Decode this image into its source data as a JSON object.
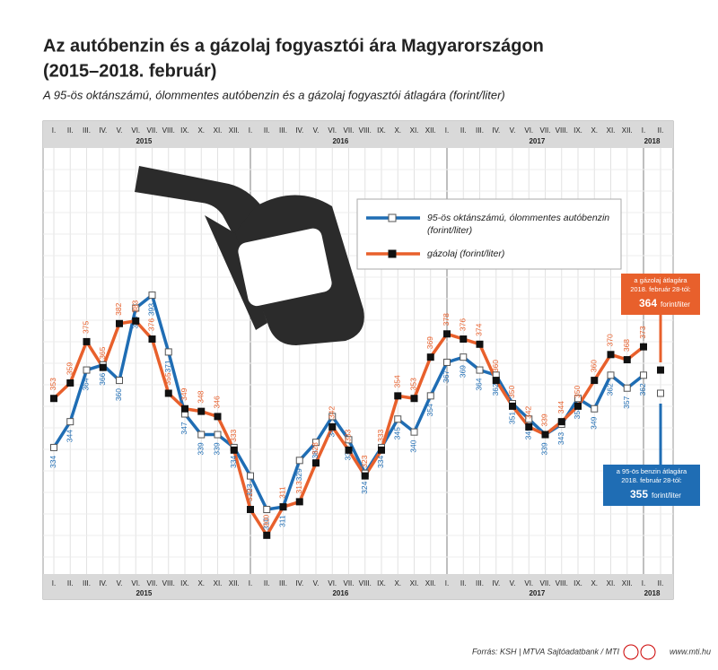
{
  "chart_data": {
    "type": "line",
    "title": [
      "Az autóbenzin és a gázolaj fogyasztói ára Magyarországon",
      "(2015–2018. február)"
    ],
    "subtitle": "A 95-ös oktánszámú, ólommentes autóbenzin és a gázolaj fogyasztói átlagára (forint/liter)",
    "categories": [
      "I.",
      "II.",
      "III.",
      "IV.",
      "V.",
      "VI.",
      "VII.",
      "VIII.",
      "IX.",
      "X.",
      "XI.",
      "XII.",
      "I.",
      "II.",
      "III.",
      "IV.",
      "V.",
      "VI.",
      "VII.",
      "VIII.",
      "IX.",
      "X.",
      "XI.",
      "XII.",
      "I.",
      "II.",
      "III.",
      "IV.",
      "V.",
      "VI.",
      "VII.",
      "VIII.",
      "IX.",
      "X.",
      "XI.",
      "XII.",
      "I.",
      "II."
    ],
    "years": [
      "2015",
      "2016",
      "2017",
      "2018"
    ],
    "ylim": [
      285,
      450
    ],
    "grid": true,
    "series": [
      {
        "name": "95-ös oktánszámú, ólommentes autóbenzin",
        "unit": "(forint/liter)",
        "color": "#1f6db4",
        "values": [
          334,
          344,
          364,
          366,
          360,
          388,
          393,
          371,
          347,
          339,
          339,
          334,
          323,
          310,
          311,
          329,
          336,
          346,
          337,
          324,
          334,
          345,
          340,
          354,
          367,
          369,
          364,
          362,
          351,
          345,
          339,
          343,
          353,
          349,
          362,
          357,
          362,
          355
        ]
      },
      {
        "name": "gázolaj (forint/liter)",
        "color": "#e8602c",
        "values": [
          353,
          359,
          375,
          365,
          382,
          383,
          376,
          355,
          349,
          348,
          346,
          333,
          310,
          300,
          311,
          313,
          328,
          342,
          333,
          323,
          333,
          354,
          353,
          369,
          378,
          376,
          374,
          360,
          350,
          342,
          339,
          344,
          350,
          360,
          370,
          368,
          373,
          364
        ]
      }
    ],
    "callouts": [
      {
        "text": [
          "a gázolaj átlagára",
          "2018. február 28-tól:"
        ],
        "unit": "forint/liter"
      },
      {
        "text": [
          "a 95-ös benzin átlagára",
          "2018. február 28-tól:"
        ],
        "unit": "forint/liter"
      }
    ],
    "source": "Forrás: KSH | MTVA Sajtóadatbank / MTI",
    "website": "www.mti.hu"
  }
}
